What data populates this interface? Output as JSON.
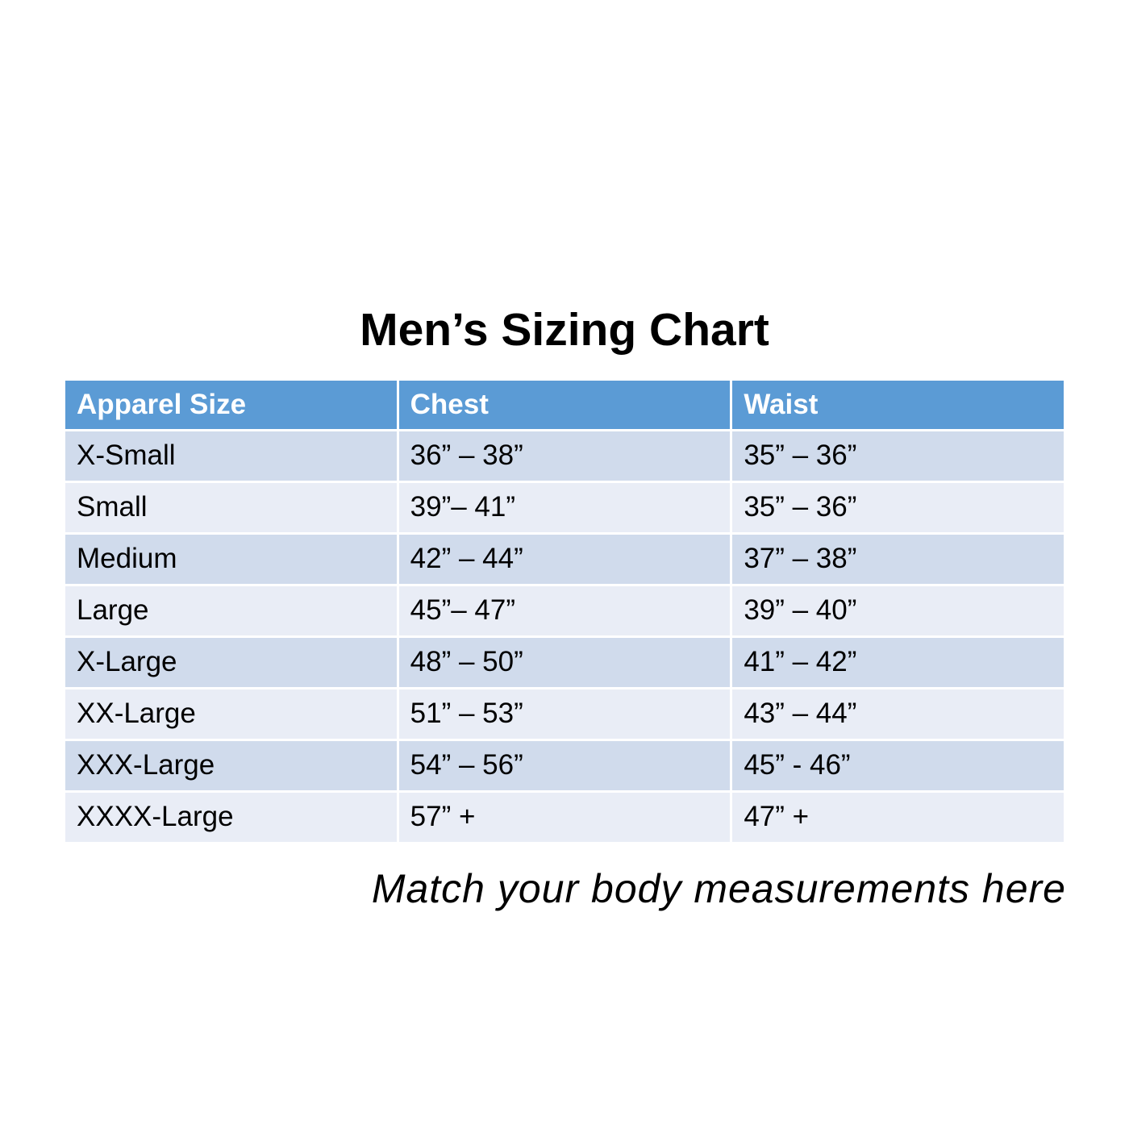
{
  "page": {
    "title": "Men’s Sizing Chart",
    "caption": "Match your body measurements here"
  },
  "chart_data": {
    "type": "table",
    "title": "Men’s Sizing Chart",
    "columns": [
      "Apparel Size",
      "Chest",
      "Waist"
    ],
    "rows": [
      [
        "X-Small",
        "36” – 38”",
        "35” – 36”"
      ],
      [
        "Small",
        "39”– 41”",
        "35” – 36”"
      ],
      [
        "Medium",
        "42” – 44”",
        "37” – 38”"
      ],
      [
        "Large",
        "45”– 47”",
        "39” – 40”"
      ],
      [
        "X-Large",
        "48” – 50”",
        "41” – 42”"
      ],
      [
        "XX-Large",
        "51” – 53”",
        "43” – 44”"
      ],
      [
        "XXX-Large",
        "54” – 56”",
        "45” - 46”"
      ],
      [
        "XXXX-Large",
        "57” +",
        "47” +"
      ]
    ],
    "caption": "Match your body measurements here",
    "layout": {
      "header_position": "top",
      "grid": "alternating-rows",
      "gridlines": "white-separators"
    }
  },
  "colors": {
    "header_bg": "#5b9bd5",
    "header_text": "#ffffff",
    "row_odd_bg": "#d0dbec",
    "row_even_bg": "#e9edf6",
    "body_text": "#000000",
    "page_bg": "#ffffff"
  }
}
